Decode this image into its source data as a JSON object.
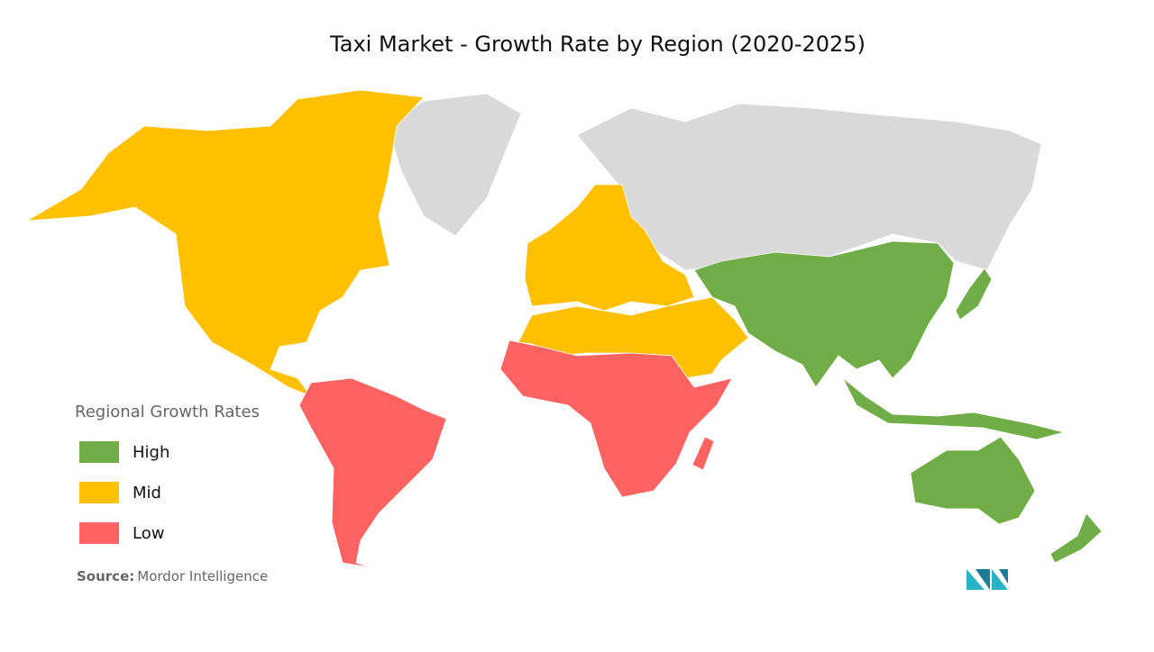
{
  "title": "Taxi Market  - Growth Rate by Region (2020-2025)",
  "legend": {
    "title": "Regional Growth Rates",
    "items": [
      {
        "label": "High",
        "color": "#70ad47"
      },
      {
        "label": "Mid",
        "color": "#ffc000"
      },
      {
        "label": "Low",
        "color": "#ff6361"
      }
    ]
  },
  "source": {
    "label": "Source:",
    "text": "Mordor Intelligence"
  }
}
